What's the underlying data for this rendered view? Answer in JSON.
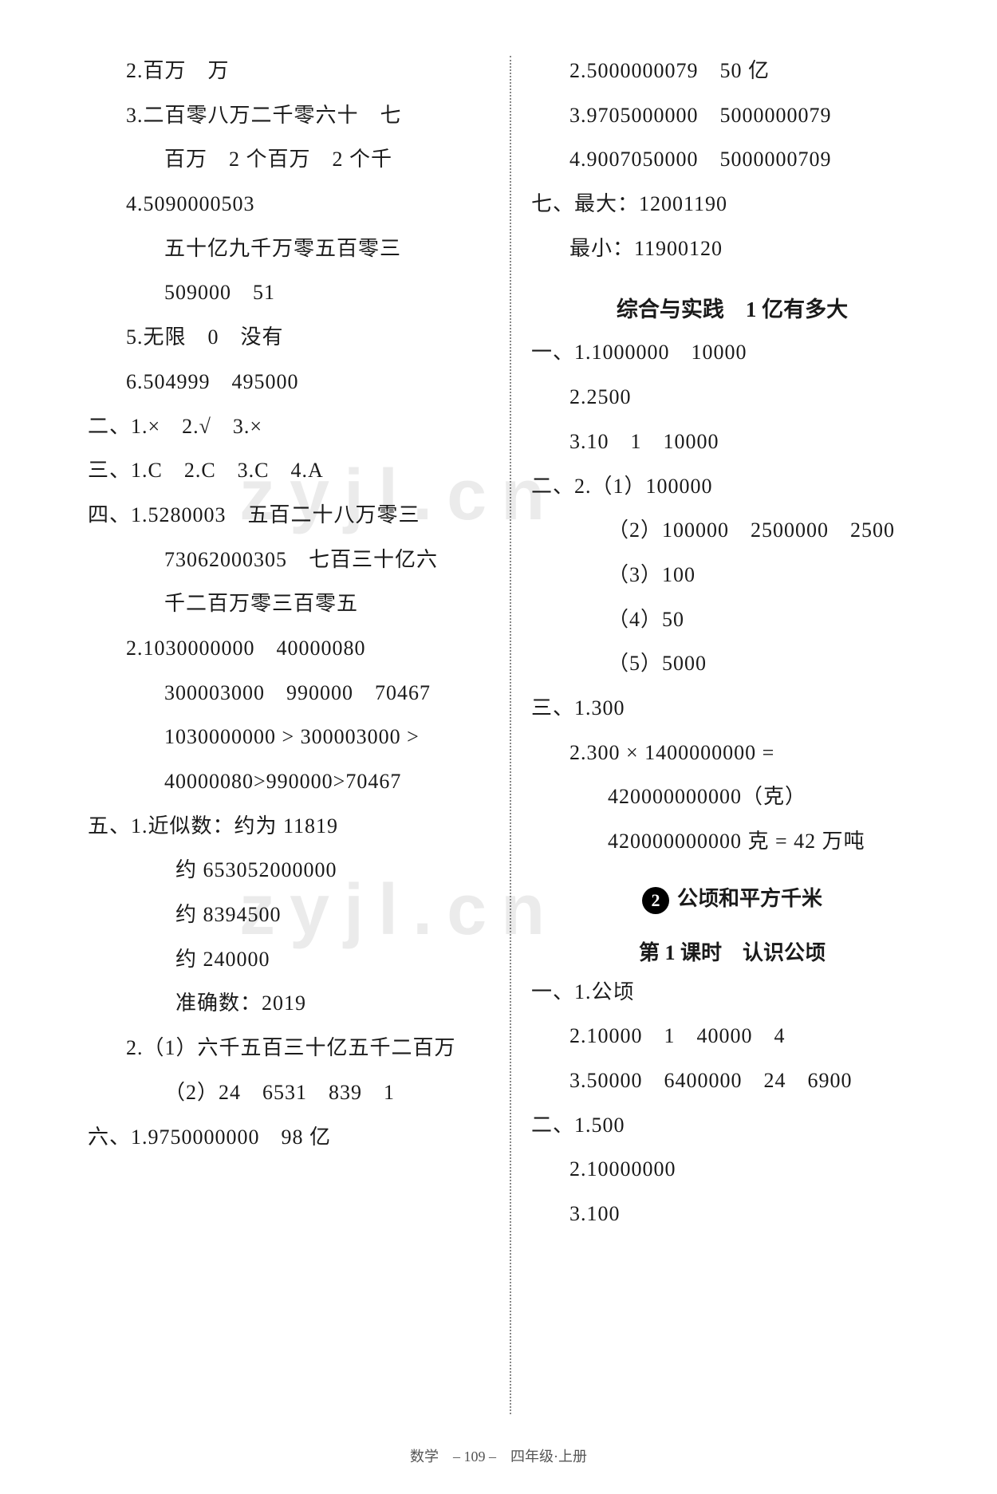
{
  "left": {
    "l1": "2.百万　万",
    "l2a": "3.二百零八万二千零六十　七",
    "l2b": "百万　2 个百万　2 个千",
    "l3a": "4.5090000503",
    "l3b": "五十亿九千万零五百零三",
    "l3c": "509000　51",
    "l4": "5.无限　0　没有",
    "l5": "6.504999　495000",
    "l6": "二、1.×　2.√　3.×",
    "l7": "三、1.C　2.C　3.C　4.A",
    "l8a": "四、1.5280003　五百二十八万零三",
    "l8b": "73062000305　七百三十亿六",
    "l8c": "千二百万零三百零五",
    "l9a": "2.1030000000　40000080",
    "l9b": "300003000　990000　70467",
    "l9c": "1030000000  >  300003000  >",
    "l9d": "40000080>990000>70467",
    "l10a": "五、1.近似数：约为 11819",
    "l10b": "约 653052000000",
    "l10c": "约 8394500",
    "l10d": "约 240000",
    "l10e": "准确数：2019",
    "l11a": "2.（1）六千五百三十亿五千二百万",
    "l11b": "（2）24　6531　839　1",
    "l12": "六、1.9750000000　98 亿"
  },
  "right": {
    "r1": "2.5000000079　50 亿",
    "r2": "3.9705000000　5000000079",
    "r3": "4.9007050000　5000000709",
    "r4": "七、最大：12001190",
    "r5": "最小：11900120",
    "r6": "综合与实践　1 亿有多大",
    "r7": "一、1.1000000　10000",
    "r8": "2.2500",
    "r9": "3.10　1　10000",
    "r10": "二、2.（1）100000",
    "r11": "（2）100000　2500000　2500",
    "r12": "（3）100",
    "r13": "（4）50",
    "r14": "（5）5000",
    "r15": "三、1.300",
    "r16a": "2.300 × 1400000000 =",
    "r16b": "420000000000（克）",
    "r16c": "420000000000 克 = 42 万吨",
    "chapterNum": "2",
    "chapterTitle": "公顷和平方千米",
    "lesson": "第 1 课时　认识公顷",
    "r17": "一、1.公顷",
    "r18": "2.10000　1　40000　4",
    "r19": "3.50000　6400000　24　6900",
    "r20": "二、1.500",
    "r21": "2.10000000",
    "r22": "3.100"
  },
  "footer": "数学　– 109 –　四年级·上册",
  "watermark": "zyjl.cn"
}
